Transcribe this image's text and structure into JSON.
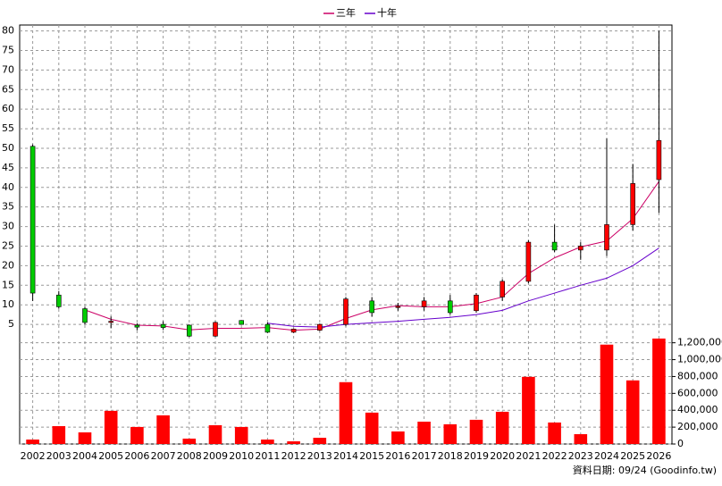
{
  "chart_data": {
    "type": "candlestick",
    "categories": [
      "2002",
      "2003",
      "2004",
      "2005",
      "2006",
      "2007",
      "2008",
      "2009",
      "2010",
      "2011",
      "2012",
      "2013",
      "2014",
      "2015",
      "2016",
      "2017",
      "2018",
      "2019",
      "2020",
      "2021",
      "2022",
      "2023",
      "2024",
      "2025",
      "2026"
    ],
    "open": [
      50.5,
      12.5,
      9,
      5.5,
      4.8,
      5,
      4.8,
      2,
      6,
      5,
      3,
      3.5,
      5,
      11,
      9.3,
      9.5,
      11,
      8.5,
      12,
      16,
      26,
      24,
      24,
      30.5,
      42
    ],
    "high": [
      51,
      13.5,
      9.5,
      7,
      5.3,
      5.8,
      5,
      5.8,
      6,
      5.5,
      4,
      5.2,
      12,
      12,
      10.5,
      12,
      12.5,
      13,
      16.5,
      26.5,
      30.5,
      26,
      52.5,
      46,
      80
    ],
    "low": [
      11,
      9,
      5,
      4,
      3.5,
      3.6,
      1.8,
      1.8,
      5,
      2.8,
      2.8,
      3.3,
      4.5,
      7,
      8.5,
      8.5,
      7.5,
      8,
      11,
      15.5,
      23.5,
      21.5,
      22.5,
      29,
      33.5
    ],
    "close": [
      13,
      9.5,
      5.5,
      5.8,
      4.3,
      4.2,
      2,
      5.5,
      5,
      3,
      3.8,
      5,
      11.5,
      8,
      9.6,
      11,
      8,
      12.5,
      16,
      26,
      24,
      25,
      30.5,
      41,
      52
    ],
    "up_color": "#ff0000",
    "down_color": "#00cc00",
    "series": [
      {
        "name": "三年",
        "color": "#cc0066",
        "values": [
          null,
          null,
          8.7,
          6.3,
          4.8,
          4.6,
          3.6,
          4,
          4,
          4.2,
          3.5,
          3.8,
          6.5,
          8.7,
          9.8,
          9.5,
          9.5,
          10.3,
          12,
          18,
          22,
          24.8,
          26.3,
          32,
          41.5
        ]
      },
      {
        "name": "十年",
        "color": "#6600cc",
        "values": [
          null,
          null,
          null,
          null,
          null,
          null,
          null,
          null,
          null,
          5.3,
          4.5,
          4.3,
          5,
          5.4,
          5.8,
          6.3,
          6.8,
          7.5,
          8.6,
          11,
          13,
          15,
          16.8,
          20,
          24.5
        ]
      }
    ],
    "volume": {
      "color": "#ff0000",
      "values": [
        53000,
        212000,
        138000,
        393000,
        202000,
        340000,
        64000,
        223000,
        202000,
        53000,
        32000,
        74000,
        733000,
        372000,
        149000,
        265000,
        234000,
        287000,
        382000,
        796000,
        255000,
        117000,
        1178000,
        754000,
        1250000
      ]
    },
    "ylim": [
      0,
      81.5
    ],
    "yticks": [
      5,
      10,
      15,
      20,
      25,
      30,
      35,
      40,
      45,
      50,
      55,
      60,
      65,
      70,
      75,
      80
    ],
    "y2lim": [
      0,
      1260000
    ],
    "y2ticks": [
      0,
      {
        "value": 200000,
        "label": "200,000"
      },
      {
        "value": 400000,
        "label": "400,000"
      },
      {
        "value": 600000,
        "label": "600,000"
      },
      {
        "value": 800000,
        "label": "800,000"
      },
      {
        "value": 1000000,
        "label": "1,000,000"
      },
      {
        "value": 1200000,
        "label": "1,200,000"
      }
    ],
    "grid": true,
    "footnote": "資料日期: 09/24 (Goodinfo.tw)"
  }
}
